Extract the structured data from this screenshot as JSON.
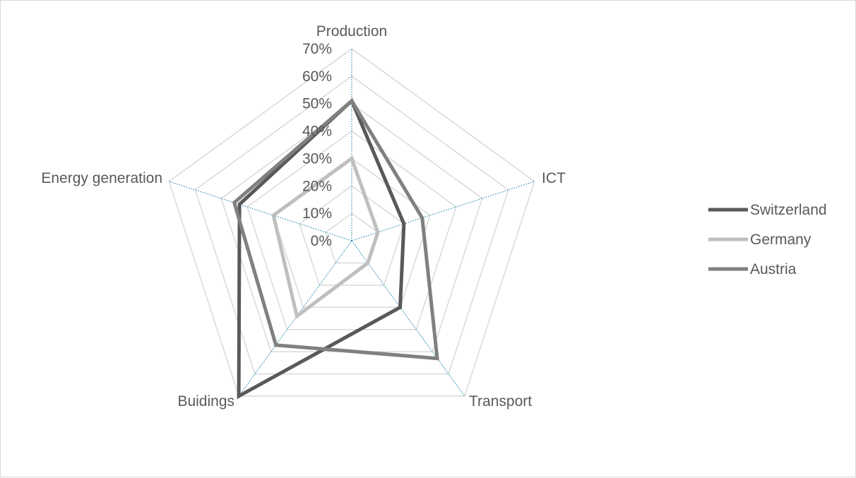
{
  "chart_data": {
    "type": "radar",
    "title": "",
    "axes": [
      "Production",
      "ICT",
      "Transport",
      "Buidings",
      "Energy generation"
    ],
    "ticks": [
      "0%",
      "10%",
      "20%",
      "30%",
      "40%",
      "50%",
      "60%",
      "70%"
    ],
    "rlim": [
      0,
      70
    ],
    "grid": true,
    "legend_position": "right",
    "series": [
      {
        "name": "Switzerland",
        "color": "#595959",
        "values": [
          51,
          20,
          30,
          70,
          43
        ]
      },
      {
        "name": "Germany",
        "color": "#bfbfbf",
        "values": [
          30,
          10,
          10,
          34,
          30
        ]
      },
      {
        "name": "Austria",
        "color": "#808080",
        "values": [
          51,
          27,
          53,
          47,
          45
        ]
      }
    ]
  }
}
